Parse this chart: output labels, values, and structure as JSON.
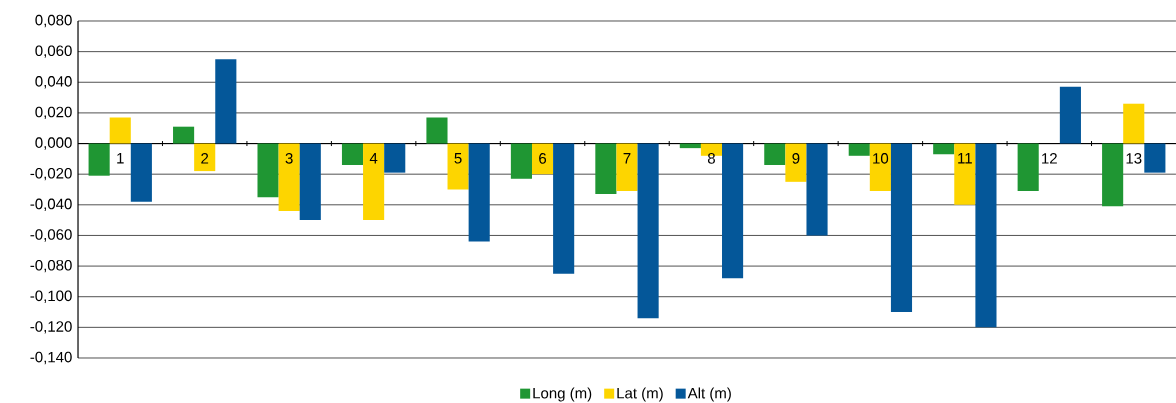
{
  "chart_data": {
    "type": "bar",
    "categories": [
      "1",
      "2",
      "3",
      "4",
      "5",
      "6",
      "7",
      "8",
      "9",
      "10",
      "11",
      "12",
      "13"
    ],
    "series": [
      {
        "name": "Long (m)",
        "color": "#1f9633",
        "values": [
          -0.021,
          0.011,
          -0.035,
          -0.014,
          0.017,
          -0.023,
          -0.033,
          -0.003,
          -0.014,
          -0.008,
          -0.007,
          -0.031,
          -0.041
        ]
      },
      {
        "name": "Lat (m)",
        "color": "#fdd500",
        "values": [
          0.017,
          -0.018,
          -0.044,
          -0.05,
          -0.03,
          -0.02,
          -0.031,
          -0.008,
          -0.025,
          -0.031,
          -0.04,
          0.0,
          0.026
        ]
      },
      {
        "name": "Alt (m)",
        "color": "#045799",
        "values": [
          -0.038,
          0.055,
          -0.05,
          -0.019,
          -0.064,
          -0.085,
          -0.114,
          -0.088,
          -0.06,
          -0.11,
          -0.12,
          0.037,
          -0.019
        ]
      }
    ],
    "ylim": [
      -0.14,
      0.08
    ],
    "yticks": [
      {
        "value": -0.14,
        "label": "-0,140"
      },
      {
        "value": -0.12,
        "label": "-0,120"
      },
      {
        "value": -0.1,
        "label": "-0,100"
      },
      {
        "value": -0.08,
        "label": "-0,080"
      },
      {
        "value": -0.06,
        "label": "-0,060"
      },
      {
        "value": -0.04,
        "label": "-0,040"
      },
      {
        "value": -0.02,
        "label": "-0,020"
      },
      {
        "value": 0,
        "label": "0,000"
      },
      {
        "value": 0.02,
        "label": "0,020"
      },
      {
        "value": 0.04,
        "label": "0,040"
      },
      {
        "value": 0.06,
        "label": "0,060"
      },
      {
        "value": 0.08,
        "label": "0,080"
      }
    ],
    "grid": "y",
    "legend": "bottom"
  }
}
